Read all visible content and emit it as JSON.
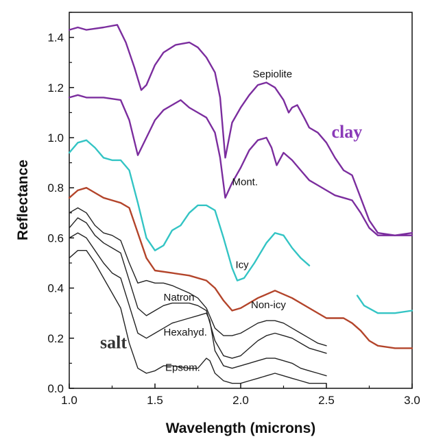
{
  "chart_data": {
    "type": "line",
    "title": "",
    "xlabel": "Wavelength (microns)",
    "ylabel": "Reflectance",
    "xlim": [
      1.0,
      3.0
    ],
    "ylim": [
      0.0,
      1.5
    ],
    "xticks": [
      "1.0",
      "1.5",
      "2.0",
      "2.5",
      "3.0"
    ],
    "yticks": [
      "0.0",
      "0.2",
      "0.4",
      "0.6",
      "0.8",
      "1.0",
      "1.2",
      "1.4"
    ],
    "grid": false,
    "series": [
      {
        "name": "Sepiolite",
        "color": "#7b2d9e",
        "points": [
          [
            1.0,
            1.43
          ],
          [
            1.05,
            1.44
          ],
          [
            1.1,
            1.43
          ],
          [
            1.2,
            1.44
          ],
          [
            1.28,
            1.45
          ],
          [
            1.33,
            1.38
          ],
          [
            1.38,
            1.28
          ],
          [
            1.42,
            1.19
          ],
          [
            1.45,
            1.21
          ],
          [
            1.5,
            1.29
          ],
          [
            1.55,
            1.34
          ],
          [
            1.62,
            1.37
          ],
          [
            1.7,
            1.38
          ],
          [
            1.75,
            1.36
          ],
          [
            1.8,
            1.32
          ],
          [
            1.85,
            1.26
          ],
          [
            1.88,
            1.16
          ],
          [
            1.91,
            0.92
          ],
          [
            1.95,
            1.06
          ],
          [
            2.0,
            1.12
          ],
          [
            2.05,
            1.17
          ],
          [
            2.1,
            1.21
          ],
          [
            2.15,
            1.22
          ],
          [
            2.2,
            1.2
          ],
          [
            2.25,
            1.15
          ],
          [
            2.28,
            1.1
          ],
          [
            2.3,
            1.12
          ],
          [
            2.33,
            1.13
          ],
          [
            2.37,
            1.08
          ],
          [
            2.4,
            1.04
          ],
          [
            2.45,
            1.02
          ],
          [
            2.5,
            0.98
          ],
          [
            2.55,
            0.92
          ],
          [
            2.6,
            0.87
          ],
          [
            2.65,
            0.85
          ],
          [
            2.7,
            0.76
          ],
          [
            2.75,
            0.67
          ],
          [
            2.8,
            0.62
          ],
          [
            2.9,
            0.61
          ],
          [
            3.0,
            0.62
          ]
        ]
      },
      {
        "name": "Mont.",
        "color": "#7b2d9e",
        "points": [
          [
            1.0,
            1.16
          ],
          [
            1.05,
            1.17
          ],
          [
            1.1,
            1.16
          ],
          [
            1.2,
            1.16
          ],
          [
            1.3,
            1.15
          ],
          [
            1.35,
            1.07
          ],
          [
            1.4,
            0.93
          ],
          [
            1.45,
            1.0
          ],
          [
            1.5,
            1.07
          ],
          [
            1.55,
            1.11
          ],
          [
            1.6,
            1.13
          ],
          [
            1.65,
            1.15
          ],
          [
            1.7,
            1.12
          ],
          [
            1.75,
            1.1
          ],
          [
            1.8,
            1.08
          ],
          [
            1.85,
            1.02
          ],
          [
            1.88,
            0.92
          ],
          [
            1.91,
            0.76
          ],
          [
            1.95,
            0.82
          ],
          [
            2.0,
            0.88
          ],
          [
            2.05,
            0.95
          ],
          [
            2.1,
            0.99
          ],
          [
            2.15,
            1.0
          ],
          [
            2.18,
            0.96
          ],
          [
            2.21,
            0.89
          ],
          [
            2.25,
            0.94
          ],
          [
            2.3,
            0.91
          ],
          [
            2.35,
            0.87
          ],
          [
            2.4,
            0.83
          ],
          [
            2.45,
            0.81
          ],
          [
            2.5,
            0.79
          ],
          [
            2.55,
            0.77
          ],
          [
            2.6,
            0.76
          ],
          [
            2.65,
            0.75
          ],
          [
            2.7,
            0.7
          ],
          [
            2.75,
            0.64
          ],
          [
            2.8,
            0.61
          ],
          [
            2.9,
            0.61
          ],
          [
            3.0,
            0.61
          ]
        ]
      },
      {
        "name": "Icy",
        "color": "#33c4c4",
        "points": [
          [
            1.0,
            0.94
          ],
          [
            1.05,
            0.98
          ],
          [
            1.1,
            0.99
          ],
          [
            1.15,
            0.96
          ],
          [
            1.2,
            0.92
          ],
          [
            1.25,
            0.91
          ],
          [
            1.3,
            0.91
          ],
          [
            1.35,
            0.87
          ],
          [
            1.4,
            0.74
          ],
          [
            1.45,
            0.6
          ],
          [
            1.5,
            0.55
          ],
          [
            1.55,
            0.57
          ],
          [
            1.6,
            0.63
          ],
          [
            1.65,
            0.65
          ],
          [
            1.7,
            0.7
          ],
          [
            1.75,
            0.73
          ],
          [
            1.8,
            0.73
          ],
          [
            1.85,
            0.71
          ],
          [
            1.9,
            0.6
          ],
          [
            1.95,
            0.48
          ],
          [
            1.98,
            0.43
          ],
          [
            2.02,
            0.44
          ],
          [
            2.08,
            0.5
          ],
          [
            2.15,
            0.58
          ],
          [
            2.2,
            0.62
          ],
          [
            2.25,
            0.61
          ],
          [
            2.3,
            0.56
          ],
          [
            2.35,
            0.52
          ],
          [
            2.4,
            0.49
          ]
        ]
      },
      {
        "name": "Icy",
        "color": "#33c4c4",
        "points": [
          [
            2.68,
            0.37
          ],
          [
            2.72,
            0.33
          ],
          [
            2.8,
            0.3
          ],
          [
            2.9,
            0.3
          ],
          [
            3.0,
            0.31
          ]
        ]
      },
      {
        "name": "Non-icy",
        "color": "#b3442a",
        "points": [
          [
            1.0,
            0.76
          ],
          [
            1.05,
            0.79
          ],
          [
            1.1,
            0.8
          ],
          [
            1.15,
            0.78
          ],
          [
            1.2,
            0.76
          ],
          [
            1.25,
            0.75
          ],
          [
            1.3,
            0.74
          ],
          [
            1.35,
            0.72
          ],
          [
            1.4,
            0.62
          ],
          [
            1.45,
            0.52
          ],
          [
            1.5,
            0.47
          ],
          [
            1.6,
            0.46
          ],
          [
            1.7,
            0.45
          ],
          [
            1.8,
            0.43
          ],
          [
            1.85,
            0.4
          ],
          [
            1.9,
            0.35
          ],
          [
            1.95,
            0.31
          ],
          [
            2.0,
            0.32
          ],
          [
            2.1,
            0.36
          ],
          [
            2.2,
            0.39
          ],
          [
            2.3,
            0.36
          ],
          [
            2.4,
            0.32
          ],
          [
            2.5,
            0.28
          ],
          [
            2.6,
            0.28
          ],
          [
            2.65,
            0.26
          ],
          [
            2.7,
            0.23
          ],
          [
            2.75,
            0.19
          ],
          [
            2.8,
            0.17
          ],
          [
            2.9,
            0.16
          ],
          [
            3.0,
            0.16
          ]
        ]
      },
      {
        "name": "",
        "color": "#222222",
        "points": [
          [
            1.0,
            0.7
          ],
          [
            1.05,
            0.72
          ],
          [
            1.1,
            0.7
          ],
          [
            1.15,
            0.65
          ],
          [
            1.2,
            0.62
          ],
          [
            1.25,
            0.61
          ],
          [
            1.3,
            0.59
          ],
          [
            1.35,
            0.5
          ],
          [
            1.4,
            0.42
          ],
          [
            1.45,
            0.43
          ],
          [
            1.5,
            0.42
          ],
          [
            1.55,
            0.42
          ],
          [
            1.6,
            0.41
          ],
          [
            1.7,
            0.38
          ],
          [
            1.75,
            0.36
          ],
          [
            1.8,
            0.32
          ],
          [
            1.85,
            0.24
          ],
          [
            1.9,
            0.21
          ],
          [
            1.95,
            0.21
          ],
          [
            2.0,
            0.22
          ],
          [
            2.05,
            0.24
          ],
          [
            2.1,
            0.26
          ],
          [
            2.15,
            0.27
          ],
          [
            2.2,
            0.27
          ],
          [
            2.25,
            0.26
          ],
          [
            2.3,
            0.24
          ],
          [
            2.35,
            0.22
          ],
          [
            2.4,
            0.2
          ],
          [
            2.45,
            0.18
          ],
          [
            2.5,
            0.17
          ]
        ]
      },
      {
        "name": "Natron",
        "color": "#222222",
        "points": [
          [
            1.0,
            0.64
          ],
          [
            1.05,
            0.68
          ],
          [
            1.1,
            0.66
          ],
          [
            1.15,
            0.61
          ],
          [
            1.2,
            0.58
          ],
          [
            1.25,
            0.56
          ],
          [
            1.3,
            0.54
          ],
          [
            1.35,
            0.43
          ],
          [
            1.4,
            0.32
          ],
          [
            1.45,
            0.29
          ],
          [
            1.5,
            0.31
          ],
          [
            1.55,
            0.33
          ],
          [
            1.6,
            0.34
          ],
          [
            1.7,
            0.34
          ],
          [
            1.75,
            0.33
          ],
          [
            1.8,
            0.31
          ],
          [
            1.85,
            0.19
          ],
          [
            1.9,
            0.13
          ],
          [
            1.95,
            0.12
          ],
          [
            2.0,
            0.13
          ],
          [
            2.05,
            0.16
          ],
          [
            2.1,
            0.19
          ],
          [
            2.15,
            0.21
          ],
          [
            2.2,
            0.22
          ],
          [
            2.25,
            0.21
          ],
          [
            2.3,
            0.2
          ],
          [
            2.35,
            0.18
          ],
          [
            2.4,
            0.16
          ],
          [
            2.45,
            0.15
          ],
          [
            2.5,
            0.14
          ]
        ]
      },
      {
        "name": "Hexahyd.",
        "color": "#222222",
        "points": [
          [
            1.0,
            0.6
          ],
          [
            1.05,
            0.62
          ],
          [
            1.1,
            0.6
          ],
          [
            1.15,
            0.55
          ],
          [
            1.2,
            0.5
          ],
          [
            1.25,
            0.46
          ],
          [
            1.3,
            0.44
          ],
          [
            1.35,
            0.33
          ],
          [
            1.4,
            0.22
          ],
          [
            1.45,
            0.2
          ],
          [
            1.5,
            0.22
          ],
          [
            1.55,
            0.24
          ],
          [
            1.6,
            0.26
          ],
          [
            1.7,
            0.28
          ],
          [
            1.75,
            0.29
          ],
          [
            1.8,
            0.3
          ],
          [
            1.82,
            0.27
          ],
          [
            1.85,
            0.15
          ],
          [
            1.9,
            0.09
          ],
          [
            1.95,
            0.08
          ],
          [
            2.0,
            0.09
          ],
          [
            2.05,
            0.1
          ],
          [
            2.1,
            0.11
          ],
          [
            2.15,
            0.12
          ],
          [
            2.2,
            0.12
          ],
          [
            2.25,
            0.11
          ],
          [
            2.3,
            0.1
          ],
          [
            2.35,
            0.08
          ],
          [
            2.4,
            0.07
          ],
          [
            2.45,
            0.06
          ],
          [
            2.5,
            0.05
          ]
        ]
      },
      {
        "name": "Epsom.",
        "color": "#222222",
        "points": [
          [
            1.0,
            0.52
          ],
          [
            1.05,
            0.55
          ],
          [
            1.1,
            0.55
          ],
          [
            1.15,
            0.5
          ],
          [
            1.2,
            0.44
          ],
          [
            1.25,
            0.38
          ],
          [
            1.3,
            0.32
          ],
          [
            1.35,
            0.18
          ],
          [
            1.4,
            0.08
          ],
          [
            1.45,
            0.06
          ],
          [
            1.5,
            0.07
          ],
          [
            1.55,
            0.09
          ],
          [
            1.6,
            0.09
          ],
          [
            1.7,
            0.08
          ],
          [
            1.75,
            0.08
          ],
          [
            1.8,
            0.12
          ],
          [
            1.82,
            0.11
          ],
          [
            1.85,
            0.06
          ],
          [
            1.9,
            0.03
          ],
          [
            1.95,
            0.02
          ],
          [
            2.0,
            0.02
          ],
          [
            2.05,
            0.03
          ],
          [
            2.1,
            0.04
          ],
          [
            2.15,
            0.05
          ],
          [
            2.2,
            0.06
          ],
          [
            2.25,
            0.05
          ],
          [
            2.3,
            0.04
          ],
          [
            2.35,
            0.03
          ],
          [
            2.4,
            0.02
          ],
          [
            2.45,
            0.02
          ],
          [
            2.5,
            0.02
          ]
        ]
      }
    ],
    "annotations": [
      {
        "text": "Sepiolite",
        "x": 2.07,
        "y": 1.24,
        "kind": "series"
      },
      {
        "text": "Mont.",
        "x": 1.95,
        "y": 0.81,
        "kind": "series"
      },
      {
        "text": "Icy",
        "x": 1.97,
        "y": 0.48,
        "kind": "series"
      },
      {
        "text": "Non-icy",
        "x": 2.06,
        "y": 0.32,
        "kind": "series"
      },
      {
        "text": "Natron",
        "x": 1.55,
        "y": 0.35,
        "kind": "series"
      },
      {
        "text": "Hexahyd.",
        "x": 1.55,
        "y": 0.21,
        "kind": "series"
      },
      {
        "text": "Epsom.",
        "x": 1.56,
        "y": 0.07,
        "kind": "series"
      },
      {
        "text": "clay",
        "x": 2.53,
        "y": 1.0,
        "kind": "group",
        "color": "#8a3ab8"
      },
      {
        "text": "salt",
        "x": 1.18,
        "y": 0.16,
        "kind": "group",
        "color": "#333333"
      }
    ]
  }
}
